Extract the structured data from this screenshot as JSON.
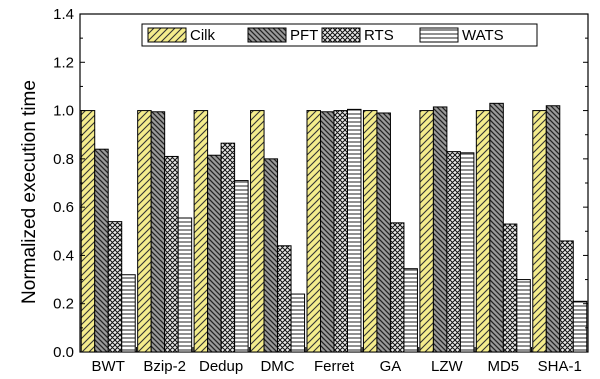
{
  "chart_data": {
    "type": "bar",
    "title": "",
    "xlabel": "",
    "ylabel": "Normalized execution time",
    "ylim": [
      0,
      1.4
    ],
    "yticks": [
      "0.0",
      "0.2",
      "0.4",
      "0.6",
      "0.8",
      "1.0",
      "1.2",
      "1.4"
    ],
    "grid": false,
    "legend_position": "top",
    "categories": [
      "BWT",
      "Bzip-2",
      "Dedup",
      "DMC",
      "Ferret",
      "GA",
      "LZW",
      "MD5",
      "SHA-1"
    ],
    "series": [
      {
        "name": "Cilk",
        "color": "#f4ec8c",
        "pattern": "diagonal-forward",
        "values": [
          1.0,
          1.0,
          1.0,
          1.0,
          1.0,
          1.0,
          1.0,
          1.0,
          1.0
        ]
      },
      {
        "name": "PFT",
        "color": "#8c8c8c",
        "pattern": "diagonal-backward",
        "values": [
          0.84,
          0.995,
          0.815,
          0.8,
          0.995,
          0.99,
          1.015,
          1.03,
          1.02
        ]
      },
      {
        "name": "RTS",
        "color": "#8c8c8c",
        "pattern": "crosshatch",
        "values": [
          0.54,
          0.81,
          0.865,
          0.44,
          1.0,
          0.535,
          0.83,
          0.53,
          0.46
        ]
      },
      {
        "name": "WATS",
        "color": "#ffffff",
        "pattern": "horizontal",
        "values": [
          0.32,
          0.555,
          0.71,
          0.24,
          1.005,
          0.345,
          0.825,
          0.3,
          0.21
        ]
      }
    ]
  }
}
